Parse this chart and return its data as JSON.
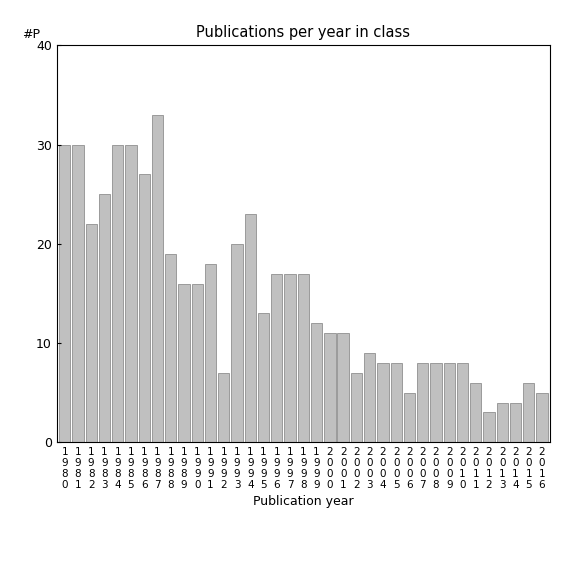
{
  "title": "Publications per year in class",
  "xlabel": "Publication year",
  "ylabel": "#P",
  "years": [
    "1980",
    "1981",
    "1982",
    "1983",
    "1984",
    "1985",
    "1986",
    "1987",
    "1988",
    "1989",
    "1990",
    "1991",
    "1992",
    "1993",
    "1994",
    "1995",
    "1996",
    "1997",
    "1998",
    "1999",
    "2000",
    "2001",
    "2002",
    "2003",
    "2004",
    "2005",
    "2006",
    "2007",
    "2008",
    "2009",
    "2010",
    "2011",
    "2012",
    "2013",
    "2014",
    "2015",
    "2016"
  ],
  "values": [
    30,
    30,
    22,
    25,
    30,
    30,
    27,
    33,
    19,
    16,
    16,
    18,
    7,
    20,
    23,
    13,
    17,
    17,
    17,
    12,
    11,
    11,
    7,
    9,
    8,
    8,
    5,
    8,
    8,
    8,
    8,
    6,
    3,
    4,
    4,
    6,
    5
  ],
  "bar_color": "#c0c0c0",
  "bar_edgecolor": "#808080",
  "ylim": [
    0,
    40
  ],
  "yticks": [
    0,
    10,
    20,
    30,
    40
  ],
  "figsize": [
    5.67,
    5.67
  ],
  "dpi": 100
}
